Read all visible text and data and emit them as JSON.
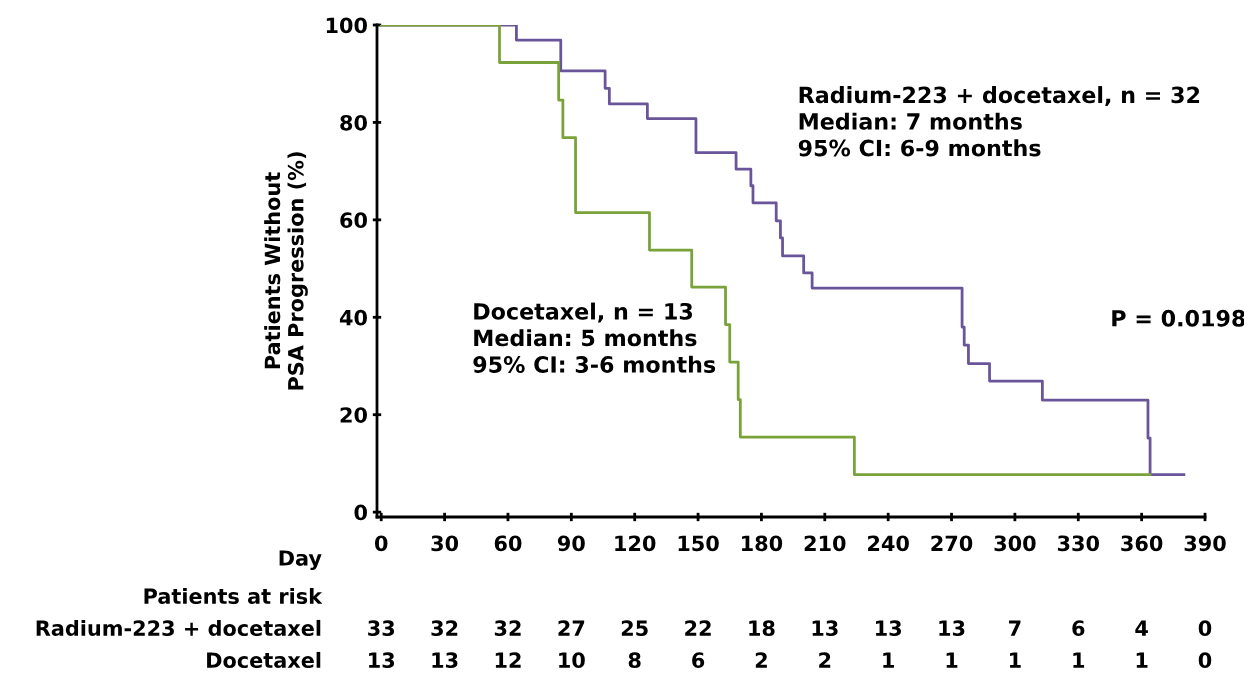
{
  "chart_data": {
    "type": "step",
    "ylabel": "Patients Without\nPSA Progression (%)",
    "xlabel": "Day",
    "xlim": [
      -2,
      390
    ],
    "xticks": [
      0,
      30,
      60,
      90,
      120,
      150,
      180,
      210,
      240,
      270,
      300,
      330,
      360,
      390
    ],
    "ylim": [
      -1,
      100
    ],
    "yticks": [
      0,
      20,
      40,
      60,
      80,
      100
    ],
    "grid": false,
    "legend": false,
    "line_style": "solid",
    "series": [
      {
        "color": "#6a559a",
        "x": [
          0,
          64,
          85,
          106,
          108,
          126,
          149,
          168,
          175,
          176,
          187,
          189,
          190,
          200,
          204,
          275,
          276,
          278,
          288,
          313,
          363,
          364,
          380
        ],
        "values": [
          100,
          96.9,
          90.6,
          87.0,
          83.8,
          80.8,
          73.8,
          70.4,
          67.0,
          63.5,
          59.8,
          56.3,
          52.6,
          49.1,
          46.0,
          38.0,
          34.3,
          30.5,
          26.9,
          23.0,
          15.2,
          7.7,
          7.7
        ]
      },
      {
        "color": "#7aa23a",
        "x": [
          0,
          56,
          84,
          86,
          92,
          127,
          147,
          163,
          165,
          169,
          170,
          224,
          364
        ],
        "values": [
          100,
          92.3,
          84.6,
          76.9,
          61.5,
          53.8,
          46.2,
          38.5,
          30.8,
          23.1,
          15.4,
          7.7,
          7.7
        ]
      }
    ],
    "annotations": [
      "Radium-223 + docetaxel, n = 32\nMedian: 7 months\n95% CI: 6-9 months",
      "Docetaxel, n = 13\nMedian: 5 months\n95% CI: 3-6 months",
      "P = 0.0198",
      "Patients at risk",
      "Radium-223 + docetaxel",
      "33",
      "32",
      "32",
      "27",
      "25",
      "22",
      "18",
      "13",
      "13",
      "13",
      "7",
      "6",
      "4",
      "0",
      "Docetaxel",
      "13",
      "13",
      "12",
      "10",
      "8",
      "6",
      "2",
      "2",
      "1",
      "1",
      "1",
      "1",
      "1",
      "0"
    ]
  }
}
